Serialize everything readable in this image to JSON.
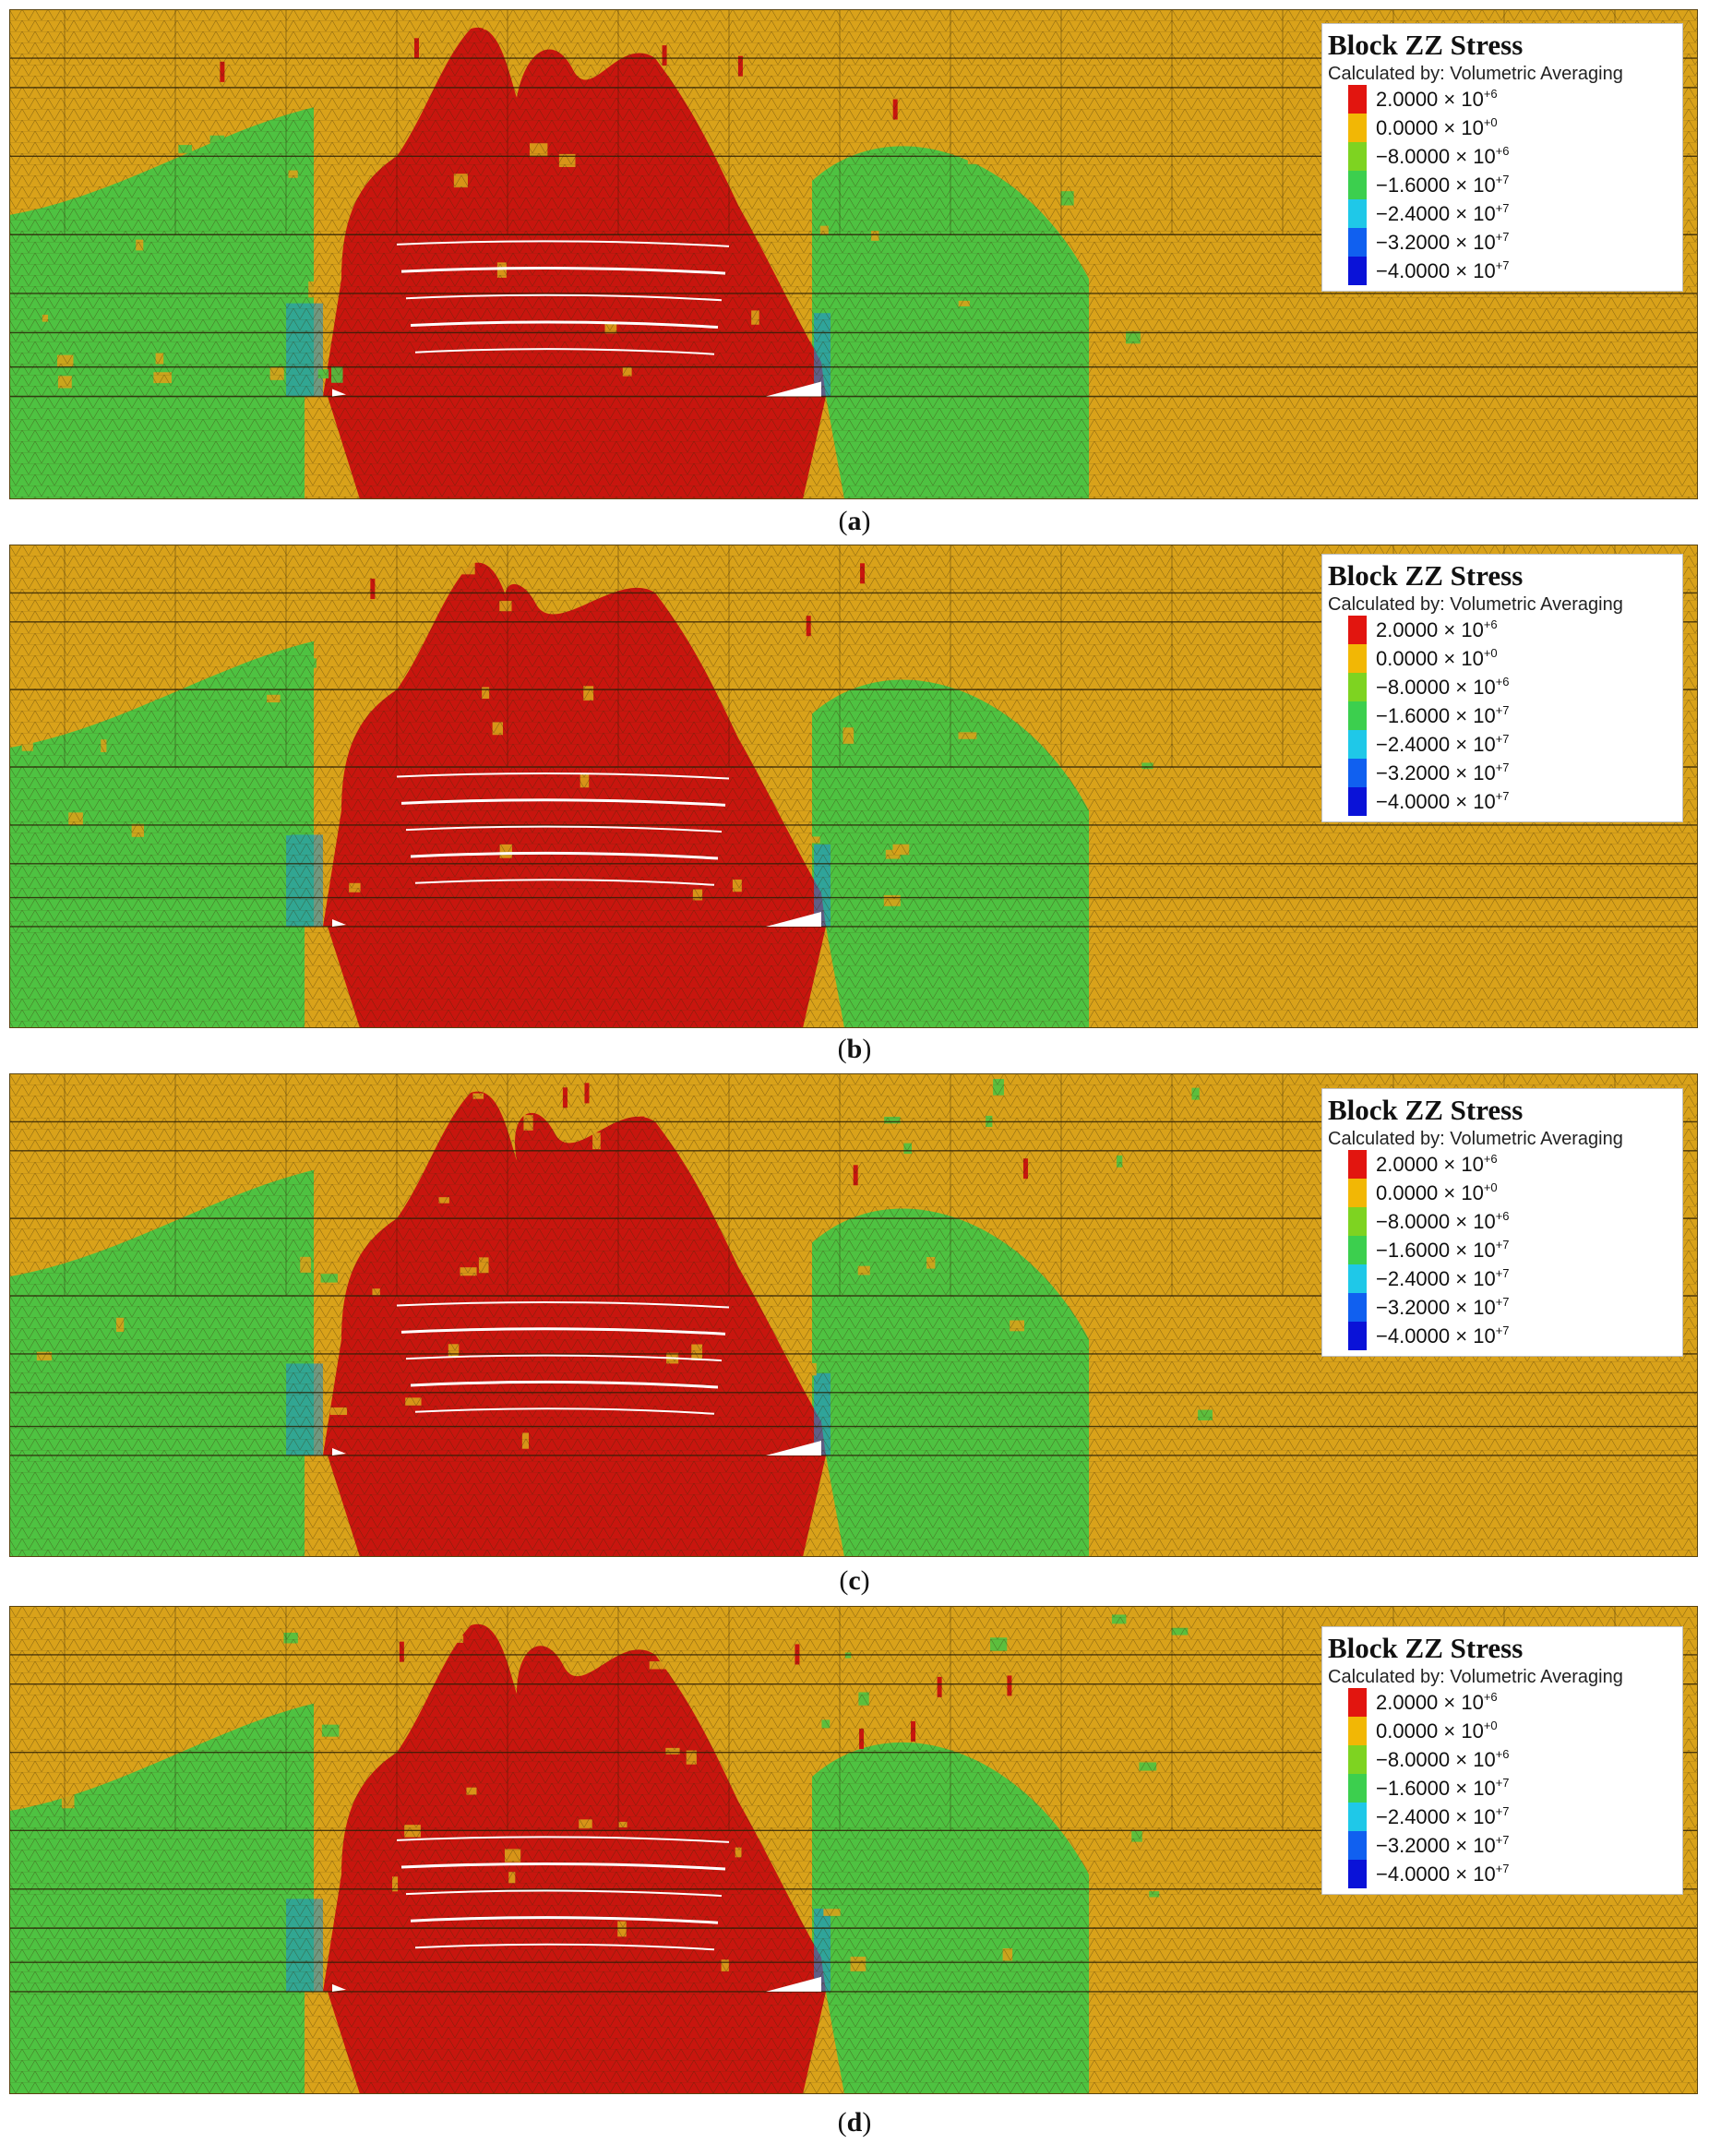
{
  "figure": {
    "legend": {
      "title": "Block ZZ Stress",
      "subtitle": "Calculated by:  Volumetric Averaging",
      "entries": [
        {
          "mantissa": "2.0000",
          "exponent": "+6",
          "color": "#e2150f"
        },
        {
          "mantissa": "0.0000",
          "exponent": "+0",
          "color": "#f2b705"
        },
        {
          "mantissa": "−8.0000",
          "exponent": "+6",
          "color": "#7ed321"
        },
        {
          "mantissa": "−1.6000",
          "exponent": "+7",
          "color": "#3ccf4e"
        },
        {
          "mantissa": "−2.4000",
          "exponent": "+7",
          "color": "#1fc8e8"
        },
        {
          "mantissa": "−3.2000",
          "exponent": "+7",
          "color": "#1060f0"
        },
        {
          "mantissa": "−4.0000",
          "exponent": "+7",
          "color": "#0a12d8"
        }
      ],
      "times_sign": "× 10"
    },
    "colors": {
      "background_rock": "#d9a21a",
      "tension_zone": "#c8150e",
      "compression_green": "#4ec241",
      "compression_blue": "#1a8fd6",
      "gap_white": "#ffffff",
      "mesh_line": "#3a2a08"
    },
    "panels": [
      {
        "id": "a",
        "caption_open": "(",
        "caption_letter": "a",
        "caption_close": ")",
        "red_peak_shift": 0
      },
      {
        "id": "b",
        "caption_open": "(",
        "caption_letter": "b",
        "caption_close": ")",
        "red_peak_shift": -40
      },
      {
        "id": "c",
        "caption_open": "(",
        "caption_letter": "c",
        "caption_close": ")",
        "red_peak_shift": -20
      },
      {
        "id": "d",
        "caption_open": "(",
        "caption_letter": "d",
        "caption_close": ")",
        "red_peak_shift": -10
      }
    ]
  }
}
